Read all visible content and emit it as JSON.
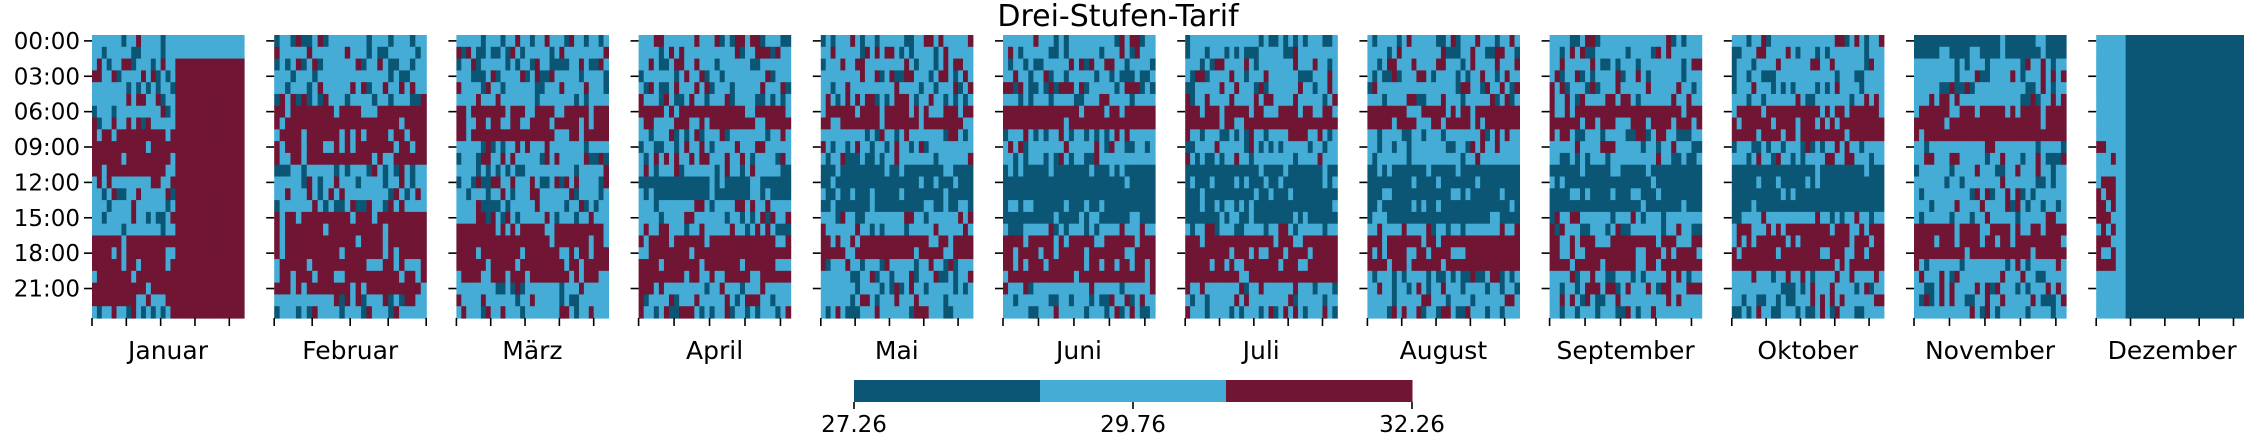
{
  "chart_data": {
    "type": "heatmap",
    "title": "Drei-Stufen-Tarif",
    "y_tick_labels": [
      "00:00",
      "03:00",
      "06:00",
      "09:00",
      "12:00",
      "15:00",
      "18:00",
      "21:00"
    ],
    "months": [
      "Januar",
      "Februar",
      "März",
      "April",
      "Mai",
      "Juni",
      "Juli",
      "August",
      "September",
      "Oktober",
      "November",
      "Dezember"
    ],
    "days_per_month": [
      31,
      28,
      31,
      30,
      31,
      30,
      31,
      31,
      30,
      31,
      30,
      31
    ],
    "hours_per_day": 24,
    "levels": [
      27.26,
      29.76,
      32.26
    ],
    "level_colors": [
      "#0c5675",
      "#45acd6",
      "#701533"
    ],
    "colorbar": {
      "ticks": [
        27.26,
        29.76,
        32.26
      ],
      "tick_labels": [
        "27.26",
        "29.76",
        "32.26"
      ],
      "min": 27.26,
      "max": 32.26
    },
    "level_profiles_by_month": {
      "Januar": [
        1,
        1,
        1,
        1,
        1,
        1,
        1,
        1,
        2,
        2,
        2,
        2,
        1,
        1,
        1,
        1,
        1,
        2,
        2,
        2,
        2,
        2,
        2,
        1
      ],
      "Februar": [
        1,
        1,
        1,
        1,
        1,
        1,
        2,
        2,
        2,
        2,
        2,
        1,
        1,
        1,
        1,
        2,
        2,
        2,
        2,
        2,
        2,
        2,
        1,
        1
      ],
      "März": [
        1,
        1,
        1,
        1,
        1,
        1,
        2,
        2,
        2,
        1,
        1,
        1,
        1,
        1,
        1,
        1,
        2,
        2,
        2,
        2,
        2,
        1,
        1,
        1
      ],
      "April": [
        1,
        1,
        1,
        1,
        1,
        1,
        2,
        2,
        1,
        1,
        1,
        1,
        0,
        0,
        1,
        1,
        1,
        2,
        2,
        2,
        2,
        1,
        1,
        1
      ],
      "Mai": [
        1,
        1,
        1,
        1,
        1,
        1,
        2,
        2,
        1,
        1,
        1,
        0,
        0,
        0,
        0,
        1,
        1,
        2,
        2,
        1,
        1,
        1,
        1,
        1
      ],
      "Juni": [
        1,
        1,
        1,
        1,
        1,
        1,
        2,
        2,
        1,
        1,
        1,
        0,
        0,
        0,
        0,
        0,
        1,
        2,
        2,
        2,
        2,
        1,
        1,
        1
      ],
      "Juli": [
        1,
        1,
        1,
        1,
        1,
        1,
        2,
        2,
        1,
        1,
        1,
        0,
        0,
        0,
        0,
        0,
        1,
        2,
        2,
        2,
        2,
        1,
        1,
        1
      ],
      "August": [
        1,
        1,
        1,
        1,
        1,
        1,
        2,
        2,
        1,
        1,
        1,
        0,
        0,
        0,
        0,
        0,
        1,
        2,
        2,
        2,
        1,
        1,
        1,
        1
      ],
      "September": [
        1,
        1,
        1,
        1,
        1,
        1,
        2,
        2,
        1,
        1,
        1,
        0,
        0,
        0,
        0,
        1,
        1,
        2,
        2,
        2,
        1,
        1,
        1,
        1
      ],
      "Oktober": [
        1,
        1,
        1,
        1,
        1,
        1,
        2,
        2,
        2,
        1,
        1,
        0,
        0,
        0,
        0,
        1,
        2,
        2,
        2,
        2,
        1,
        1,
        1,
        1
      ],
      "November": [
        0,
        0,
        1,
        1,
        1,
        1,
        2,
        2,
        2,
        1,
        1,
        1,
        1,
        1,
        1,
        1,
        2,
        2,
        2,
        1,
        1,
        1,
        1,
        1
      ],
      "Dezember": [
        0,
        0,
        0,
        0,
        0,
        0,
        0,
        0,
        0,
        0,
        0,
        0,
        0,
        0,
        0,
        0,
        0,
        0,
        0,
        0,
        0,
        0,
        0,
        0
      ]
    }
  }
}
